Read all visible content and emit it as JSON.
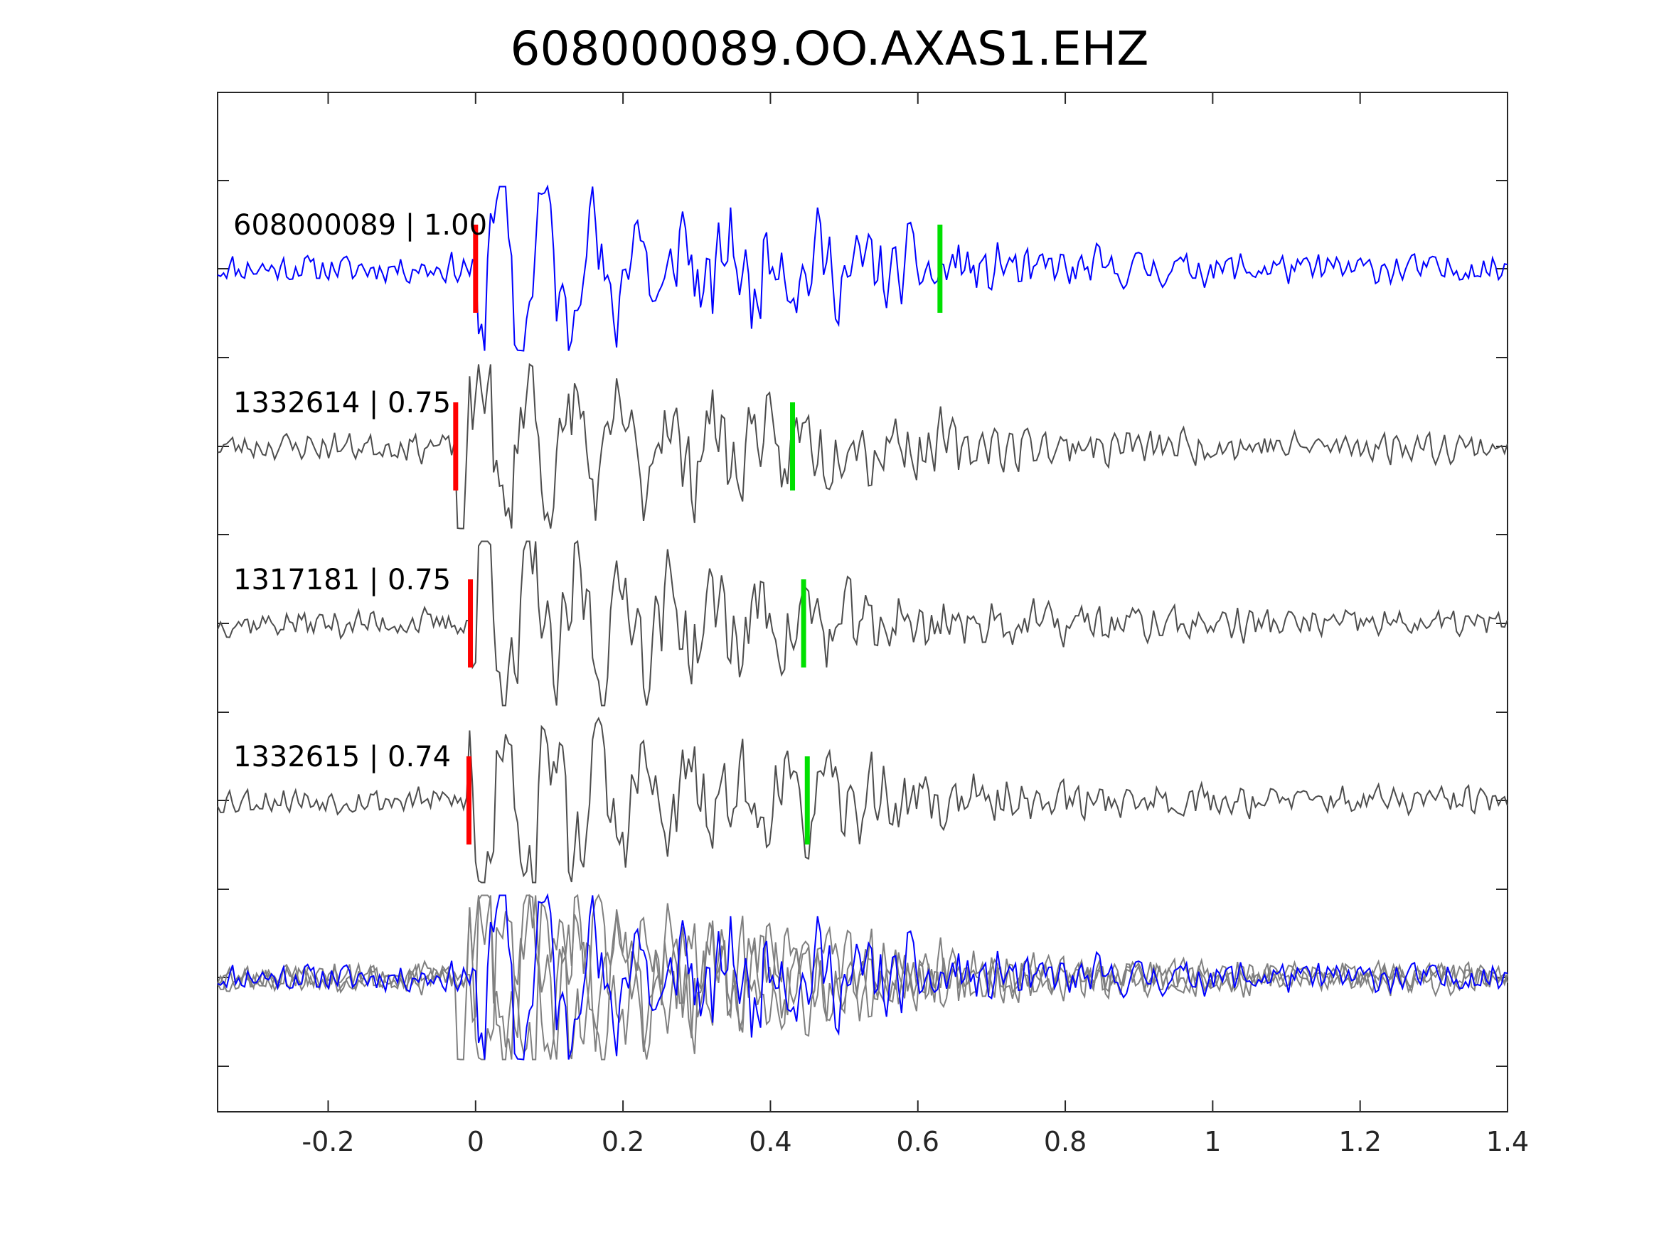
{
  "chart_data": {
    "type": "line",
    "title": "608000089.OO.AXAS1.EHZ",
    "xlabel": "",
    "ylabel": "",
    "xlim": [
      -0.35,
      1.4
    ],
    "x_ticks": [
      -0.2,
      0,
      0.2,
      0.4,
      0.6,
      0.8,
      1,
      1.2,
      1.4
    ],
    "x_tick_labels": [
      "-0.2",
      "0",
      "0.2",
      "0.4",
      "0.6",
      "0.8",
      "1",
      "1.2",
      "1.4"
    ],
    "grid": false,
    "legend": "none",
    "colors": {
      "template_trace": "#0000ff",
      "match_trace": "#4d4d4d",
      "overlay_match": "#808080",
      "p_pick": "#ff0000",
      "s_pick": "#00e000",
      "axes": "#262626"
    },
    "traces": [
      {
        "label": "608000089 | 1.00",
        "event_id": "608000089",
        "correlation": 1.0,
        "p_pick": 0.0,
        "s_pick": 0.63,
        "highlight": true
      },
      {
        "label": "1332614 | 0.75",
        "event_id": "1332614",
        "correlation": 0.75,
        "p_pick": -0.027,
        "s_pick": 0.43,
        "highlight": false
      },
      {
        "label": "1317181 | 0.75",
        "event_id": "1317181",
        "correlation": 0.75,
        "p_pick": -0.007,
        "s_pick": 0.445,
        "highlight": false
      },
      {
        "label": "1332615 | 0.74",
        "event_id": "1332615",
        "correlation": 0.74,
        "p_pick": -0.009,
        "s_pick": 0.45,
        "highlight": false
      }
    ],
    "overlay": {
      "description_rows": "all traces superimposed"
    }
  }
}
